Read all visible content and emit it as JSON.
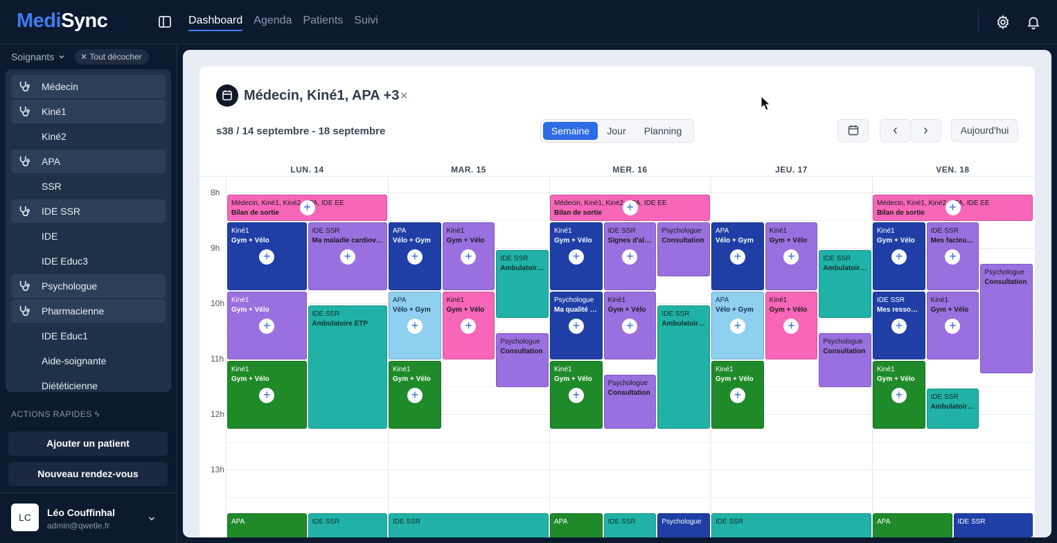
{
  "app": {
    "logo_part1": "Medi",
    "logo_part2": "Sync"
  },
  "nav": {
    "tabs": [
      "Dashboard",
      "Agenda",
      "Patients",
      "Suivi"
    ],
    "active": "Dashboard"
  },
  "sidebar": {
    "heading": "Soignants",
    "clear_chip": "Tout décocher",
    "items": [
      {
        "label": "Médecin",
        "selected": true
      },
      {
        "label": "Kiné1",
        "selected": true
      },
      {
        "label": "Kiné2",
        "selected": false
      },
      {
        "label": "APA",
        "selected": true
      },
      {
        "label": "SSR",
        "selected": false
      },
      {
        "label": "IDE SSR",
        "selected": true
      },
      {
        "label": "IDE",
        "selected": false
      },
      {
        "label": "IDE Educ3",
        "selected": false
      },
      {
        "label": "Psychologue",
        "selected": true
      },
      {
        "label": "Pharmacienne",
        "selected": true
      },
      {
        "label": "IDE Educ1",
        "selected": false
      },
      {
        "label": "Aide-soignante",
        "selected": false
      },
      {
        "label": "Diététicienne",
        "selected": false
      }
    ],
    "actions_title": "ACTIONS RAPIDES",
    "add_patient": "Ajouter un patient",
    "new_appointment": "Nouveau rendez-vous",
    "user": {
      "initials": "LC",
      "name": "Léo Couffinhal",
      "email": "admin@qwetle.fr"
    }
  },
  "calendar": {
    "title": "Médecin, Kiné1, APA +3",
    "close": "×",
    "week": "s38 / 14 septembre - 18 septembre",
    "views": [
      "Semaine",
      "Jour",
      "Planning"
    ],
    "active_view": "Semaine",
    "prev": "‹",
    "next": "›",
    "today": "Aujourd'hui",
    "days": [
      "LUN. 14",
      "MAR. 15",
      "MER. 16",
      "JEU. 17",
      "VEN. 18"
    ],
    "hours": [
      "8h",
      "9h",
      "10h",
      "11h",
      "12h",
      "13h"
    ],
    "events": [
      {
        "day": 0,
        "col": 0,
        "span": 2,
        "ncol": 2,
        "start": 8.0,
        "end": 8.5,
        "c": "pink",
        "who": "Médecin, Kiné1, Kiné2, APA, IDE EE",
        "what": "Bilan de sortie",
        "plus": true
      },
      {
        "day": 0,
        "col": 0,
        "span": 1,
        "ncol": 2,
        "start": 8.5,
        "end": 9.75,
        "c": "navy",
        "who": "Kiné1",
        "what": "Gym + Vélo",
        "plus": true
      },
      {
        "day": 0,
        "col": 1,
        "span": 1,
        "ncol": 2,
        "start": 8.5,
        "end": 9.75,
        "c": "purple",
        "who": "IDE SSR",
        "what": "Ma maladie cardiovasculaire",
        "plus": true
      },
      {
        "day": 0,
        "col": 0,
        "span": 1,
        "ncol": 2,
        "start": 9.75,
        "end": 11.0,
        "c": "purple-w",
        "who": "Kiné1",
        "what": "Gym + Vélo",
        "plus": true
      },
      {
        "day": 0,
        "col": 1,
        "span": 1,
        "ncol": 2,
        "start": 10.0,
        "end": 12.25,
        "c": "teal",
        "who": "IDE SSR",
        "what": "Ambulatoire ETP",
        "plus": false
      },
      {
        "day": 0,
        "col": 0,
        "span": 1,
        "ncol": 2,
        "start": 11.0,
        "end": 12.25,
        "c": "green",
        "who": "Kiné1",
        "what": "Gym + Vélo",
        "plus": true
      },
      {
        "day": 1,
        "col": 0,
        "span": 1,
        "ncol": 3,
        "start": 8.5,
        "end": 9.75,
        "c": "navy",
        "who": "APA",
        "what": "Vélo + Gym",
        "plus": true
      },
      {
        "day": 1,
        "col": 1,
        "span": 1,
        "ncol": 3,
        "start": 8.5,
        "end": 9.75,
        "c": "purple",
        "who": "Kiné1",
        "what": "Gym + Vélo",
        "plus": true
      },
      {
        "day": 1,
        "col": 2,
        "span": 1,
        "ncol": 3,
        "start": 9.0,
        "end": 10.25,
        "c": "teal",
        "who": "IDE SSR",
        "what": "Ambulatoire ETP",
        "plus": false
      },
      {
        "day": 1,
        "col": 0,
        "span": 1,
        "ncol": 3,
        "start": 9.75,
        "end": 11.0,
        "c": "sky",
        "who": "APA",
        "what": "Vélo + Gym",
        "plus": true
      },
      {
        "day": 1,
        "col": 1,
        "span": 1,
        "ncol": 3,
        "start": 9.75,
        "end": 11.0,
        "c": "pink",
        "who": "Kiné1",
        "what": "Gym + Vélo",
        "plus": true
      },
      {
        "day": 1,
        "col": 2,
        "span": 1,
        "ncol": 3,
        "start": 10.5,
        "end": 11.5,
        "c": "purple",
        "who": "Psychologue",
        "what": "Consultation",
        "plus": false
      },
      {
        "day": 1,
        "col": 0,
        "span": 1,
        "ncol": 3,
        "start": 11.0,
        "end": 12.25,
        "c": "green",
        "who": "Kiné1",
        "what": "Gym + Vélo",
        "plus": true
      },
      {
        "day": 2,
        "col": 0,
        "span": 3,
        "ncol": 3,
        "start": 8.0,
        "end": 8.5,
        "c": "pink",
        "who": "Médecin, Kiné1, Kiné2, APA, IDE EE",
        "what": "Bilan de sortie",
        "plus": true
      },
      {
        "day": 2,
        "col": 0,
        "span": 1,
        "ncol": 3,
        "start": 8.5,
        "end": 9.75,
        "c": "navy",
        "who": "Kiné1",
        "what": "Gym + Vélo",
        "plus": true
      },
      {
        "day": 2,
        "col": 1,
        "span": 1,
        "ncol": 3,
        "start": 8.5,
        "end": 9.75,
        "c": "purple",
        "who": "IDE SSR",
        "what": "Signes d'alerte",
        "plus": true
      },
      {
        "day": 2,
        "col": 2,
        "span": 1,
        "ncol": 3,
        "start": 8.5,
        "end": 9.5,
        "c": "purple",
        "who": "Psychologue",
        "what": "Consultation",
        "plus": false
      },
      {
        "day": 2,
        "col": 0,
        "span": 1,
        "ncol": 3,
        "start": 9.75,
        "end": 11.0,
        "c": "navy",
        "who": "Psychologue",
        "what": "Ma qualité de vie",
        "plus": true
      },
      {
        "day": 2,
        "col": 1,
        "span": 1,
        "ncol": 3,
        "start": 9.75,
        "end": 11.0,
        "c": "purple",
        "who": "Kiné1",
        "what": "Gym + Vélo",
        "plus": true
      },
      {
        "day": 2,
        "col": 2,
        "span": 1,
        "ncol": 3,
        "start": 10.0,
        "end": 12.25,
        "c": "teal",
        "who": "IDE SSR",
        "what": "Ambulatoire ETP",
        "plus": false
      },
      {
        "day": 2,
        "col": 0,
        "span": 1,
        "ncol": 3,
        "start": 11.0,
        "end": 12.25,
        "c": "green",
        "who": "Kiné1",
        "what": "Gym + Vélo",
        "plus": true
      },
      {
        "day": 2,
        "col": 1,
        "span": 1,
        "ncol": 3,
        "start": 11.25,
        "end": 12.25,
        "c": "purple",
        "who": "Psychologue",
        "what": "Consultation",
        "plus": false
      },
      {
        "day": 3,
        "col": 0,
        "span": 1,
        "ncol": 3,
        "start": 8.5,
        "end": 9.75,
        "c": "navy",
        "who": "APA",
        "what": "Vélo + Gym",
        "plus": true
      },
      {
        "day": 3,
        "col": 1,
        "span": 1,
        "ncol": 3,
        "start": 8.5,
        "end": 9.75,
        "c": "purple",
        "who": "Kiné1",
        "what": "Gym + Vélo",
        "plus": true
      },
      {
        "day": 3,
        "col": 2,
        "span": 1,
        "ncol": 3,
        "start": 9.0,
        "end": 10.25,
        "c": "teal",
        "who": "IDE SSR",
        "what": "Ambulatoire ETP",
        "plus": false
      },
      {
        "day": 3,
        "col": 0,
        "span": 1,
        "ncol": 3,
        "start": 9.75,
        "end": 11.0,
        "c": "sky",
        "who": "APA",
        "what": "Vélo + Gym",
        "plus": true
      },
      {
        "day": 3,
        "col": 1,
        "span": 1,
        "ncol": 3,
        "start": 9.75,
        "end": 11.0,
        "c": "pink",
        "who": "Kiné1",
        "what": "Gym + Vélo",
        "plus": true
      },
      {
        "day": 3,
        "col": 2,
        "span": 1,
        "ncol": 3,
        "start": 10.5,
        "end": 11.5,
        "c": "purple",
        "who": "Psychologue",
        "what": "Consultation",
        "plus": false
      },
      {
        "day": 3,
        "col": 0,
        "span": 1,
        "ncol": 3,
        "start": 11.0,
        "end": 12.25,
        "c": "green",
        "who": "Kiné1",
        "what": "Gym + Vélo",
        "plus": true
      },
      {
        "day": 4,
        "col": 0,
        "span": 3,
        "ncol": 3,
        "start": 8.0,
        "end": 8.5,
        "c": "pink",
        "who": "Médecin, Kiné1, Kiné2, APA, IDE EE",
        "what": "Bilan de sortie",
        "plus": true
      },
      {
        "day": 4,
        "col": 0,
        "span": 1,
        "ncol": 3,
        "start": 8.5,
        "end": 9.75,
        "c": "navy",
        "who": "Kiné1",
        "what": "Gym + Vélo",
        "plus": true
      },
      {
        "day": 4,
        "col": 1,
        "span": 1,
        "ncol": 3,
        "start": 8.5,
        "end": 9.75,
        "c": "purple",
        "who": "IDE SSR",
        "what": "Mes facteurs de risque",
        "plus": true
      },
      {
        "day": 4,
        "col": 2,
        "span": 1,
        "ncol": 3,
        "start": 9.25,
        "end": 11.25,
        "c": "purple",
        "who": "Psychologue",
        "what": "Consultation",
        "plus": false
      },
      {
        "day": 4,
        "col": 0,
        "span": 1,
        "ncol": 3,
        "start": 9.75,
        "end": 11.0,
        "c": "navy",
        "who": "IDE SSR",
        "what": "Mes ressources",
        "plus": true
      },
      {
        "day": 4,
        "col": 1,
        "span": 1,
        "ncol": 3,
        "start": 9.75,
        "end": 11.0,
        "c": "purple",
        "who": "Kiné1",
        "what": "Gym + Vélo",
        "plus": true
      },
      {
        "day": 4,
        "col": 0,
        "span": 1,
        "ncol": 3,
        "start": 11.0,
        "end": 12.25,
        "c": "green",
        "who": "Kiné1",
        "what": "Gym + Vélo",
        "plus": true
      },
      {
        "day": 4,
        "col": 1,
        "span": 1,
        "ncol": 3,
        "start": 11.5,
        "end": 12.25,
        "c": "teal",
        "who": "IDE SSR",
        "what": "Ambulatoire ETP",
        "plus": false
      },
      {
        "day": 0,
        "col": 0,
        "span": 1,
        "ncol": 2,
        "start": 13.75,
        "end": 14.25,
        "c": "green",
        "who": "APA",
        "what": "",
        "plus": false
      },
      {
        "day": 0,
        "col": 1,
        "span": 1,
        "ncol": 2,
        "start": 13.75,
        "end": 14.25,
        "c": "teal",
        "who": "IDE SSR",
        "what": "",
        "plus": false
      },
      {
        "day": 1,
        "col": 0,
        "span": 3,
        "ncol": 3,
        "start": 13.75,
        "end": 14.25,
        "c": "teal",
        "who": "IDE SSR",
        "what": "",
        "plus": false
      },
      {
        "day": 2,
        "col": 0,
        "span": 1,
        "ncol": 3,
        "start": 13.75,
        "end": 14.25,
        "c": "green",
        "who": "APA",
        "what": "",
        "plus": false
      },
      {
        "day": 2,
        "col": 1,
        "span": 1,
        "ncol": 3,
        "start": 13.75,
        "end": 14.25,
        "c": "teal",
        "who": "IDE SSR",
        "what": "",
        "plus": false
      },
      {
        "day": 2,
        "col": 2,
        "span": 1,
        "ncol": 3,
        "start": 13.75,
        "end": 14.25,
        "c": "navy",
        "who": "Psychologue",
        "what": "",
        "plus": false
      },
      {
        "day": 3,
        "col": 0,
        "span": 3,
        "ncol": 3,
        "start": 13.75,
        "end": 14.25,
        "c": "teal",
        "who": "IDE SSR",
        "what": "",
        "plus": false
      },
      {
        "day": 4,
        "col": 0,
        "span": 1,
        "ncol": 2,
        "start": 13.75,
        "end": 14.25,
        "c": "green",
        "who": "APA",
        "what": "",
        "plus": false
      },
      {
        "day": 4,
        "col": 1,
        "span": 1,
        "ncol": 2,
        "start": 13.75,
        "end": 14.25,
        "c": "navy",
        "who": "IDE SSR",
        "what": "",
        "plus": false
      }
    ]
  },
  "icons": {
    "calendar": "calendar-icon",
    "settings": "gear-icon",
    "notifications": "bell-icon",
    "specialist": "stethoscope-icon"
  }
}
